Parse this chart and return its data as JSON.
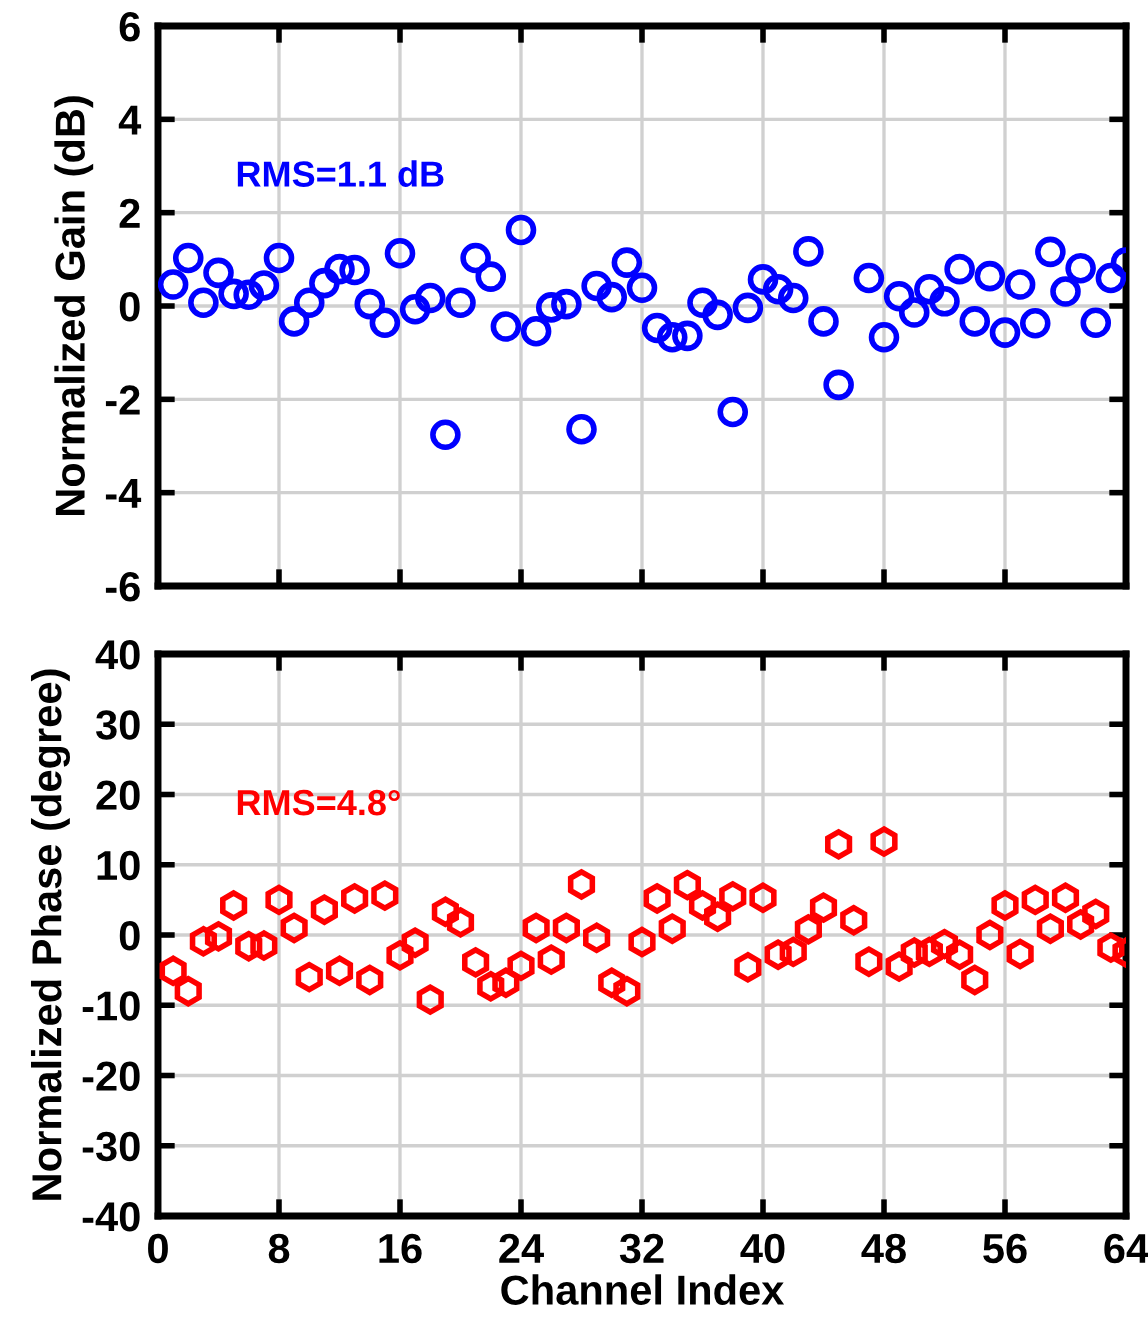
{
  "chart_data": [
    {
      "type": "scatter",
      "ylabel": "Normalized Gain (dB)",
      "annotations": [
        "RMS=1.1 dB"
      ],
      "marker": "circle",
      "grid": true,
      "tick_labels": "y",
      "xlim": [
        0,
        64
      ],
      "xticks": [
        0,
        8,
        16,
        24,
        32,
        40,
        48,
        56,
        64
      ],
      "ylim": [
        -6,
        6
      ],
      "yticks": [
        -6,
        -4,
        -2,
        0,
        2,
        4,
        6
      ],
      "x": [
        1,
        2,
        3,
        4,
        5,
        6,
        7,
        8,
        9,
        10,
        11,
        12,
        13,
        14,
        15,
        16,
        17,
        18,
        19,
        20,
        21,
        22,
        23,
        24,
        25,
        26,
        27,
        28,
        29,
        30,
        31,
        32,
        33,
        34,
        35,
        36,
        37,
        38,
        39,
        40,
        41,
        42,
        43,
        44,
        45,
        46,
        47,
        48,
        49,
        50,
        51,
        52,
        53,
        54,
        55,
        56,
        57,
        58,
        59,
        60,
        61,
        62,
        63,
        64
      ],
      "series": [
        {
          "color": "#0000ff",
          "values": [
            0.46,
            1.03,
            0.07,
            0.71,
            0.26,
            0.24,
            0.44,
            1.03,
            -0.33,
            0.07,
            0.49,
            0.79,
            0.77,
            0.04,
            -0.36,
            1.13,
            -0.07,
            0.17,
            -2.76,
            0.07,
            1.03,
            0.63,
            -0.44,
            1.63,
            -0.54,
            -0.03,
            0.04,
            -2.64,
            0.43,
            0.19,
            0.93,
            0.39,
            -0.47,
            -0.67,
            -0.64,
            0.07,
            -0.19,
            -2.27,
            -0.04,
            0.57,
            0.36,
            0.17,
            1.17,
            -0.33,
            -1.69,
            null,
            0.6,
            -0.67,
            0.21,
            -0.14,
            0.36,
            0.1,
            0.79,
            -0.33,
            0.64,
            -0.57,
            0.46,
            -0.37,
            1.16,
            0.31,
            0.81,
            -0.36,
            0.6,
            0.93
          ]
        }
      ]
    },
    {
      "type": "scatter",
      "xlabel": "Channel Index",
      "ylabel": "Normalized Phase (degree)",
      "annotations": [
        "RMS=4.8°"
      ],
      "grid": true,
      "xlim": [
        0,
        64
      ],
      "xticks": [
        0,
        8,
        16,
        24,
        32,
        40,
        48,
        56,
        64
      ],
      "ylim": [
        -40,
        40
      ],
      "yticks": [
        -40,
        -30,
        -20,
        -10,
        0,
        10,
        20,
        30,
        40
      ],
      "x": [
        1,
        2,
        3,
        4,
        5,
        6,
        7,
        8,
        9,
        10,
        11,
        12,
        13,
        14,
        15,
        16,
        17,
        18,
        19,
        20,
        21,
        22,
        23,
        24,
        25,
        26,
        27,
        28,
        29,
        30,
        31,
        32,
        33,
        34,
        35,
        36,
        37,
        38,
        39,
        40,
        41,
        42,
        43,
        44,
        45,
        46,
        47,
        48,
        49,
        50,
        51,
        52,
        53,
        54,
        55,
        56,
        57,
        58,
        59,
        60,
        61,
        62,
        63,
        64
      ],
      "series": [
        {
          "color": "#ff0000",
          "values": [
            -5.1,
            -8.0,
            -0.9,
            -0.2,
            4.2,
            -1.6,
            -1.5,
            5.0,
            1.0,
            -6.0,
            3.6,
            -5.1,
            5.2,
            -6.4,
            5.6,
            -2.9,
            -1.1,
            -9.2,
            3.3,
            1.8,
            -3.9,
            -7.3,
            -6.8,
            -4.4,
            1.0,
            -3.5,
            1.0,
            7.2,
            -0.4,
            -6.8,
            -8.0,
            -1.0,
            5.2,
            0.9,
            7.1,
            4.2,
            2.6,
            5.5,
            -4.6,
            5.3,
            -2.8,
            -2.4,
            0.8,
            3.9,
            12.9,
            2.1,
            -3.8,
            13.3,
            -4.5,
            -2.5,
            -2.4,
            -1.3,
            -2.8,
            -6.4,
            0.0,
            4.2,
            -2.7,
            5.0,
            0.9,
            5.3,
            1.5,
            3.0,
            -1.8,
            -2.5
          ]
        }
      ]
    }
  ]
}
